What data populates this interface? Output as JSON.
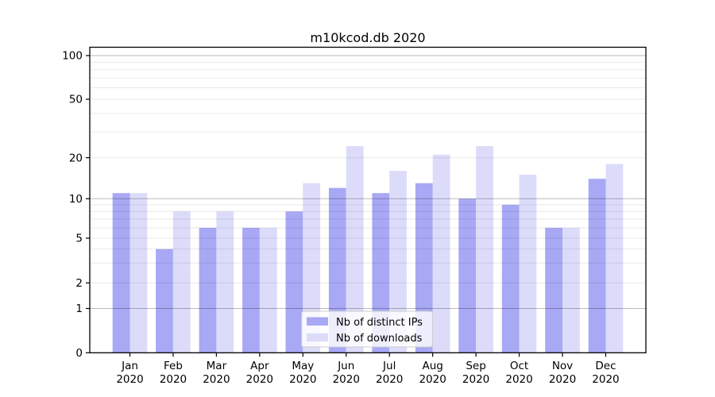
{
  "chart_data": {
    "type": "bar",
    "title": "m10kcod.db 2020",
    "categories": [
      "Jan",
      "Feb",
      "Mar",
      "Apr",
      "May",
      "Jun",
      "Jul",
      "Aug",
      "Sep",
      "Oct",
      "Nov",
      "Dec"
    ],
    "year_label": "2020",
    "series": [
      {
        "name": "Nb of distinct IPs",
        "color": "#a8a8f5",
        "values": [
          11,
          4,
          6,
          6,
          8,
          12,
          11,
          13,
          10,
          9,
          6,
          14
        ]
      },
      {
        "name": "Nb of downloads",
        "color": "#dcdcfa",
        "values": [
          11,
          8,
          8,
          6,
          13,
          24,
          16,
          21,
          24,
          15,
          6,
          18
        ]
      }
    ],
    "xlabel": "",
    "ylabel": "",
    "yaxis": {
      "scale": "symlog",
      "tick_labels": [
        "100",
        "50",
        "20",
        "10",
        "5",
        "2",
        "1",
        "0"
      ],
      "tick_values": [
        100,
        50,
        20,
        10,
        5,
        2,
        1,
        0
      ],
      "major_gridline_values": [
        1,
        10,
        100
      ],
      "minor_gridline_values": [
        2,
        3,
        4,
        5,
        6,
        7,
        8,
        9,
        20,
        30,
        40,
        50,
        60,
        70,
        80,
        90
      ],
      "range": [
        0,
        115
      ]
    },
    "legend": {
      "position": "lower center inside",
      "entries": [
        "Nb of distinct IPs",
        "Nb of downloads"
      ]
    },
    "grid": true,
    "grid_on_top_of_bars": true,
    "colors": {
      "bar_distinct_ips": "#a8a8f5",
      "bar_downloads": "#dcdcfa",
      "major_gridline": "#b9b9b9",
      "minor_gridline": "#e9e9e9",
      "axis_line": "#000000",
      "legend_border": "#cccccc",
      "legend_background": "#ffffff",
      "background": "#ffffff"
    }
  }
}
